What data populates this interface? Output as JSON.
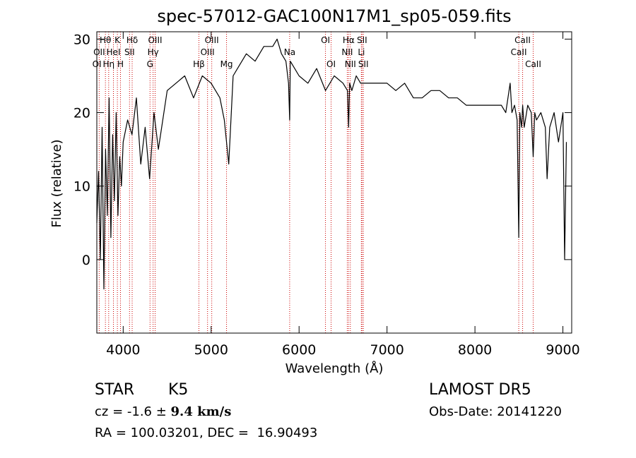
{
  "chart_data": {
    "type": "line",
    "title": "spec-57012-GAC100N17M1_sp05-059.fits",
    "xlabel": "Wavelength (Å)",
    "ylabel": "Flux (relative)",
    "xlim": [
      3700,
      9100
    ],
    "ylim": [
      -10,
      31
    ],
    "xticks": [
      4000,
      5000,
      6000,
      7000,
      8000,
      9000
    ],
    "yticks": [
      0,
      10,
      20,
      30
    ],
    "grid": false,
    "series": [
      {
        "x": [
          3700,
          3720,
          3740,
          3760,
          3780,
          3800,
          3820,
          3840,
          3860,
          3880,
          3900,
          3920,
          3940,
          3960,
          3980,
          4000,
          4050,
          4100,
          4150,
          4200,
          4250,
          4300,
          4350,
          4400,
          4500,
          4600,
          4700,
          4800,
          4900,
          5000,
          5100,
          5150,
          5200,
          5250,
          5300,
          5400,
          5500,
          5600,
          5700,
          5750,
          5800,
          5850,
          5880,
          5893,
          5900,
          5950,
          6000,
          6100,
          6200,
          6300,
          6400,
          6500,
          6550,
          6563,
          6575,
          6600,
          6650,
          6700,
          6800,
          6900,
          7000,
          7100,
          7200,
          7300,
          7400,
          7500,
          7600,
          7700,
          7800,
          7900,
          8000,
          8100,
          8200,
          8300,
          8350,
          8400,
          8420,
          8450,
          8480,
          8498,
          8510,
          8530,
          8542,
          8560,
          8600,
          8640,
          8662,
          8680,
          8700,
          8750,
          8800,
          8820,
          8850,
          8900,
          8950,
          9000,
          9020,
          9040
        ],
        "y": [
          5,
          12,
          0,
          18,
          -4,
          15,
          6,
          22,
          3,
          17,
          8,
          20,
          6,
          14,
          10,
          16,
          19,
          17,
          22,
          13,
          18,
          11,
          20,
          15,
          23,
          24,
          25,
          22,
          25,
          24,
          22,
          19,
          13,
          25,
          26,
          28,
          27,
          29,
          29,
          30,
          28,
          27,
          24,
          19,
          27,
          26,
          25,
          24,
          26,
          23,
          25,
          24,
          23,
          18,
          24,
          23,
          25,
          24,
          24,
          24,
          24,
          23,
          24,
          22,
          22,
          23,
          23,
          22,
          22,
          21,
          21,
          21,
          21,
          21,
          20,
          24,
          20,
          21,
          19,
          3,
          20,
          18,
          21,
          18,
          21,
          20,
          14,
          20,
          19,
          20,
          18,
          11,
          18,
          20,
          16,
          20,
          0,
          16
        ]
      }
    ],
    "lines": [
      {
        "name": "Hθ",
        "w": 3798,
        "row": 0
      },
      {
        "name": "OII",
        "w": 3727,
        "row": 1
      },
      {
        "name": "OI",
        "w": 3701,
        "row": 2
      },
      {
        "name": "K",
        "w": 3934,
        "row": 0
      },
      {
        "name": "HeI",
        "w": 3889,
        "row": 1
      },
      {
        "name": "Hη",
        "w": 3835,
        "row": 2
      },
      {
        "name": "Hδ",
        "w": 4102,
        "row": 0
      },
      {
        "name": "SII",
        "w": 4072,
        "row": 1
      },
      {
        "name": "H",
        "w": 3969,
        "row": 2
      },
      {
        "name": "OIII",
        "w": 4363,
        "row": 0
      },
      {
        "name": "Hγ",
        "w": 4340,
        "row": 1
      },
      {
        "name": "G",
        "w": 4305,
        "row": 2
      },
      {
        "name": "OIII",
        "w": 5007,
        "row": 0
      },
      {
        "name": "OIII",
        "w": 4959,
        "row": 1
      },
      {
        "name": "Hβ",
        "w": 4861,
        "row": 2
      },
      {
        "name": "Mg",
        "w": 5175,
        "row": 2
      },
      {
        "name": "Na",
        "w": 5893,
        "row": 1
      },
      {
        "name": "OI",
        "w": 6300,
        "row": 0
      },
      {
        "name": "OI",
        "w": 6364,
        "row": 2
      },
      {
        "name": "Hα",
        "w": 6563,
        "row": 0
      },
      {
        "name": "NII",
        "w": 6548,
        "row": 1
      },
      {
        "name": "NII",
        "w": 6583,
        "row": 2
      },
      {
        "name": "SII",
        "w": 6716,
        "row": 0
      },
      {
        "name": "Li",
        "w": 6708,
        "row": 1
      },
      {
        "name": "SII",
        "w": 6731,
        "row": 2
      },
      {
        "name": "CaII",
        "w": 8542,
        "row": 0
      },
      {
        "name": "CaII",
        "w": 8498,
        "row": 1
      },
      {
        "name": "CaII",
        "w": 8662,
        "row": 2
      }
    ]
  },
  "info": {
    "class": "STAR",
    "subclass": "K5",
    "survey": "LAMOST DR5",
    "cz_prefix": "cz = -1.6 ± ",
    "cz_err": "9.4",
    "cz_unit": " km/s",
    "obsdate": "Obs-Date: 20141220",
    "radec": "RA = 100.03201, DEC =  16.90493"
  },
  "colors": {
    "spectrum": "#000000",
    "marker": "#cc0000"
  }
}
